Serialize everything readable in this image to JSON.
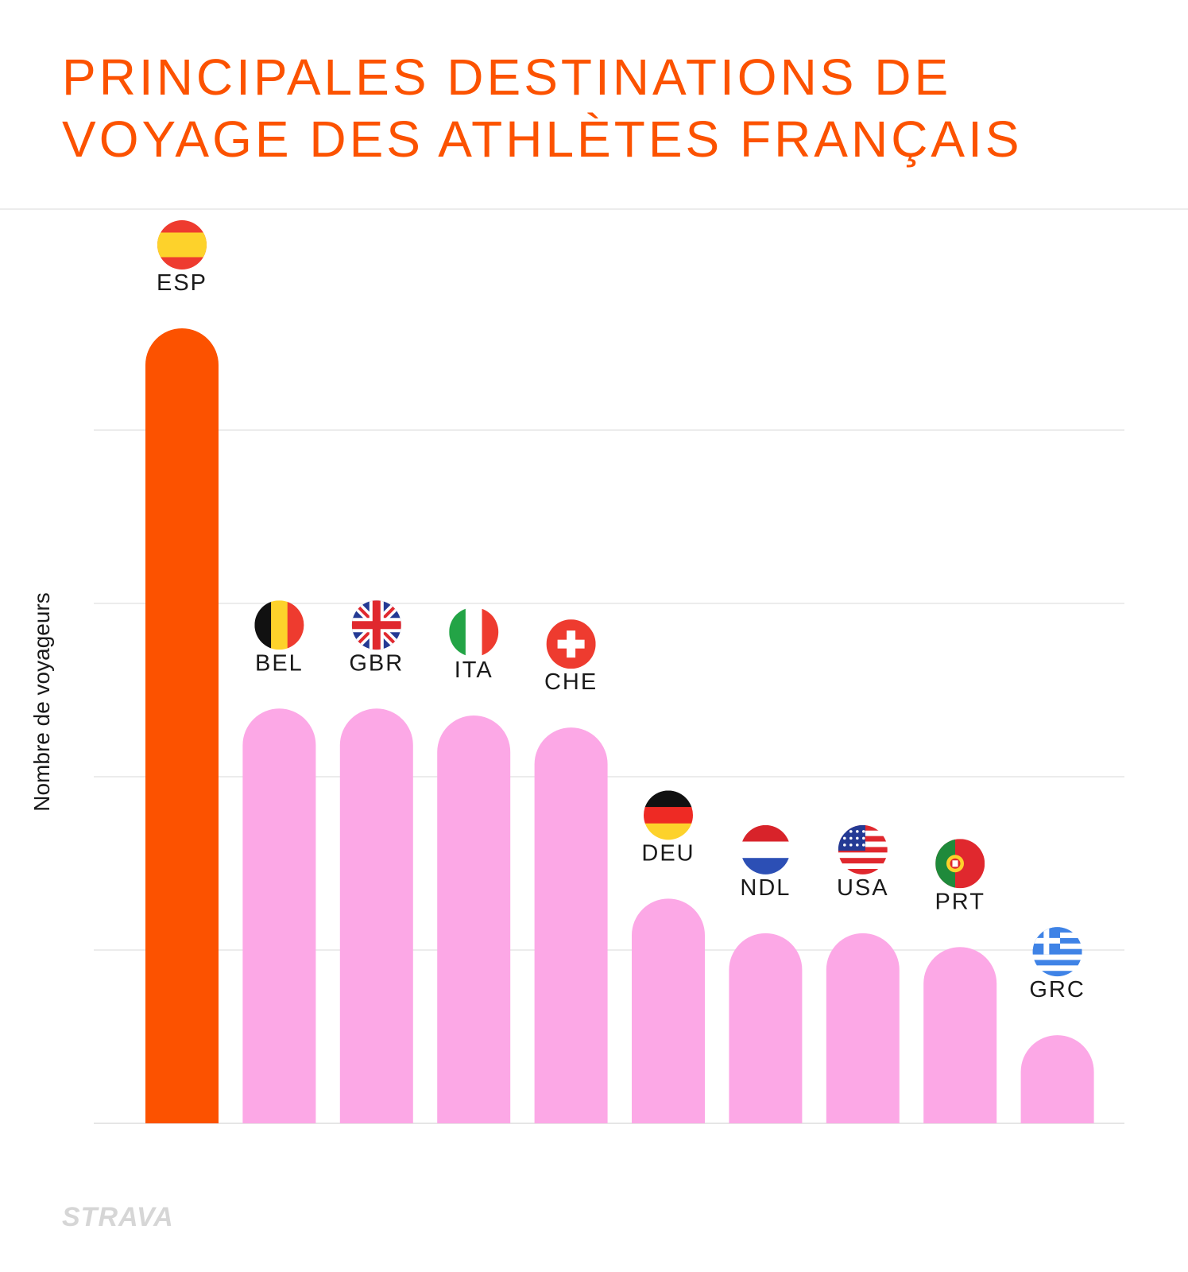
{
  "chart_data": {
    "type": "bar",
    "title": [
      "PRINCIPALES DESTINATIONS DE",
      "VOYAGE DES ATHLÈTES FRANÇAIS"
    ],
    "ylabel": "Nombre de voyageurs",
    "xlabel": "",
    "categories": [
      "ESP",
      "BEL",
      "GBR",
      "ITA",
      "CHE",
      "DEU",
      "NDL",
      "USA",
      "PRT",
      "GRC"
    ],
    "values": [
      4.6,
      2.4,
      2.4,
      2.36,
      2.29,
      1.3,
      1.1,
      1.1,
      1.02,
      0.51
    ],
    "ylim": [
      0,
      4.6
    ],
    "grid": true,
    "highlight_index": 0,
    "y_tick_labels_shown": false
  },
  "colors": {
    "accent": "#fc5200",
    "bar_highlight": "#fc5200",
    "bar_default": "#fca8e6",
    "gridline": "#e6e6e6",
    "text": "#1a1a1a"
  },
  "flags": [
    "spain-flag-icon",
    "belgium-flag-icon",
    "united-kingdom-flag-icon",
    "italy-flag-icon",
    "switzerland-flag-icon",
    "germany-flag-icon",
    "netherlands-flag-icon",
    "usa-flag-icon",
    "portugal-flag-icon",
    "greece-flag-icon"
  ],
  "brand": {
    "logo_text": "STRAVA"
  }
}
